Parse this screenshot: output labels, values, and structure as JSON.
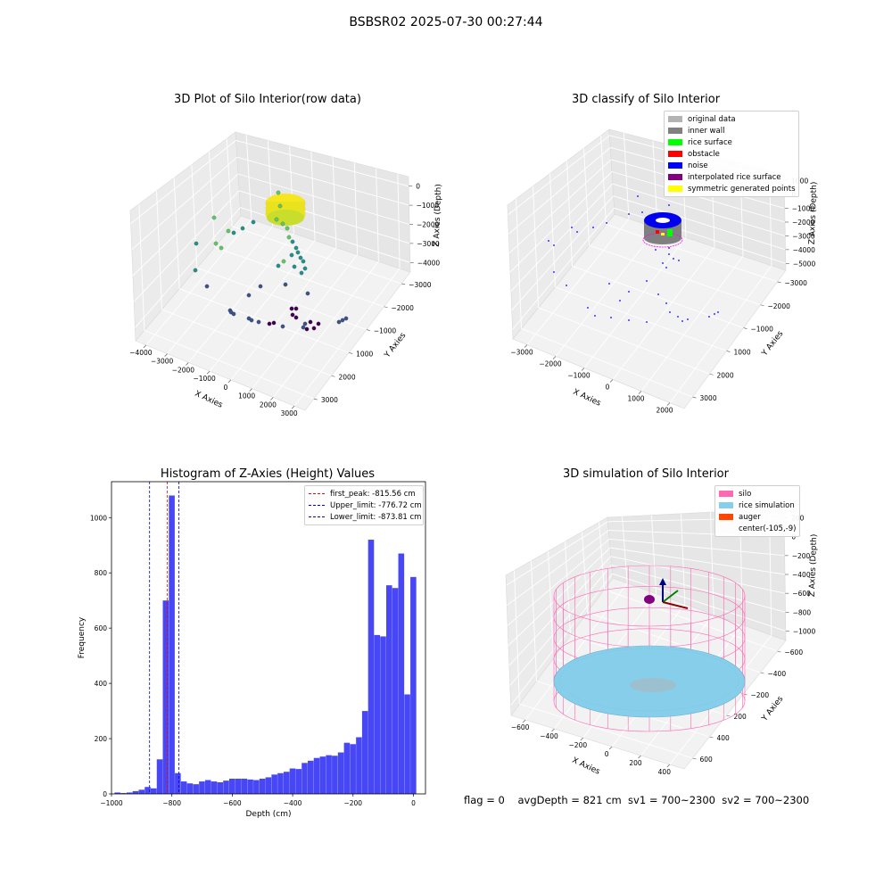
{
  "suptitle": "BSBSR02 2025-07-30 00:27:44",
  "footer": "flag = 0    avgDepth = 821 cm  sv1 = 700~2300  sv2 = 700~2300",
  "chart_data": [
    {
      "type": "scatter",
      "projection": "3d",
      "title": "3D Plot of Silo Interior(row data)",
      "xlabel": "X Axies",
      "ylabel": "Y Axies",
      "zlabel": "Z Axies (Depth)",
      "xticks": [
        "−4000",
        "−3000",
        "−2000",
        "−1000",
        "0",
        "1000",
        "2000",
        "3000"
      ],
      "yticks": [
        "3000",
        "2000",
        "1000",
        "−1000",
        "−2000",
        "−3000"
      ],
      "zticks": [
        "0",
        "−1000",
        "−2000",
        "−3000",
        "−4000"
      ],
      "xlim": [
        -4000,
        3000
      ],
      "ylim": [
        -3500,
        3500
      ],
      "zlim": [
        -4500,
        200
      ],
      "colormap": "viridis",
      "notes_points": [
        {
          "x": 200,
          "y": 400,
          "z": -800
        },
        {
          "x": 250,
          "y": 350,
          "z": -950
        },
        {
          "x": 150,
          "y": 300,
          "z": -1300
        },
        {
          "x": 300,
          "y": 200,
          "z": -1700
        },
        {
          "x": 350,
          "y": 100,
          "z": -2200
        },
        {
          "x": 400,
          "y": 0,
          "z": -2700
        },
        {
          "x": -2800,
          "y": 1500,
          "z": -1900
        },
        {
          "x": -3000,
          "y": 1300,
          "z": -2600
        },
        {
          "x": -3200,
          "y": 900,
          "z": -3700
        },
        {
          "x": -1500,
          "y": -600,
          "z": -4200
        },
        {
          "x": 200,
          "y": -1500,
          "z": -4300
        },
        {
          "x": 1200,
          "y": -1800,
          "z": -4300
        },
        {
          "x": 2200,
          "y": -1200,
          "z": -4200
        }
      ]
    },
    {
      "type": "scatter",
      "projection": "3d",
      "title": "3D classify of Silo Interior",
      "xlabel": "X Axies",
      "ylabel": "Y Axies",
      "zlabel": "Z Axies (Depth)",
      "xticks": [
        "−3000",
        "−2000",
        "−1000",
        "0",
        "1000",
        "2000"
      ],
      "yticks": [
        "3000",
        "2000",
        "1000",
        "−1000",
        "−2000",
        "−3000"
      ],
      "zticks": [
        "1000",
        "0",
        "−1000",
        "−2000",
        "−3000",
        "−4000",
        "−5000"
      ],
      "legend": [
        {
          "name": "original data",
          "color": "#b3b3b3"
        },
        {
          "name": "inner wall",
          "color": "#808080"
        },
        {
          "name": "rice surface",
          "color": "#00ff00"
        },
        {
          "name": "obstacle",
          "color": "#ff0000"
        },
        {
          "name": "noise",
          "color": "#0000ff"
        },
        {
          "name": "interpolated rice surface",
          "color": "#800080"
        },
        {
          "name": "symmetric generated points",
          "color": "#ffff00"
        }
      ]
    },
    {
      "type": "bar",
      "title": "Histogram of Z-Axies (Height) Values",
      "xlabel": "Depth (cm)",
      "ylabel": "Frequency",
      "xlim": [
        -1000,
        40
      ],
      "ylim": [
        0,
        1130
      ],
      "xticks": [
        "−1000",
        "−800",
        "−600",
        "−400",
        "−200",
        "0"
      ],
      "yticks": [
        "0",
        "200",
        "400",
        "600",
        "800",
        "1000"
      ],
      "bin_start": -990,
      "bin_width": 20,
      "values": [
        5,
        3,
        5,
        10,
        15,
        25,
        20,
        125,
        700,
        1080,
        75,
        45,
        38,
        35,
        45,
        50,
        45,
        42,
        48,
        55,
        55,
        55,
        52,
        50,
        55,
        60,
        70,
        75,
        80,
        92,
        90,
        112,
        120,
        130,
        135,
        140,
        138,
        150,
        185,
        180,
        205,
        300,
        920,
        575,
        570,
        755,
        745,
        870,
        360,
        785
      ],
      "bar_color": "#4747f5",
      "vlines": [
        {
          "label": "first_peak: -815.56 cm",
          "x": -815.56,
          "color": "#ff0000"
        },
        {
          "label": "Upper_limit: -776.72 cm",
          "x": -776.72,
          "color": "#0000cc"
        },
        {
          "label": "Lower_limit: -873.81 cm",
          "x": -873.81,
          "color": "#0000cc"
        }
      ]
    },
    {
      "type": "surface",
      "projection": "3d",
      "title": "3D simulation of Silo Interior",
      "xlabel": "X Axies",
      "ylabel": "Y Axies",
      "zlabel": "Z Axies (Depth)",
      "xticks": [
        "−600",
        "−400",
        "−200",
        "0",
        "200",
        "400"
      ],
      "yticks": [
        "600",
        "400",
        "200",
        "−200",
        "−400",
        "−600"
      ],
      "zticks": [
        "200",
        "0",
        "−200",
        "−400",
        "−600",
        "−800",
        "−1000"
      ],
      "legend": [
        {
          "name": "silo",
          "color": "#ff69b4"
        },
        {
          "name": "rice simulation",
          "color": "#87ceeb"
        },
        {
          "name": "auger",
          "color": "#ff4500"
        },
        {
          "name": "center(-105,-9)",
          "color": ""
        }
      ]
    }
  ]
}
